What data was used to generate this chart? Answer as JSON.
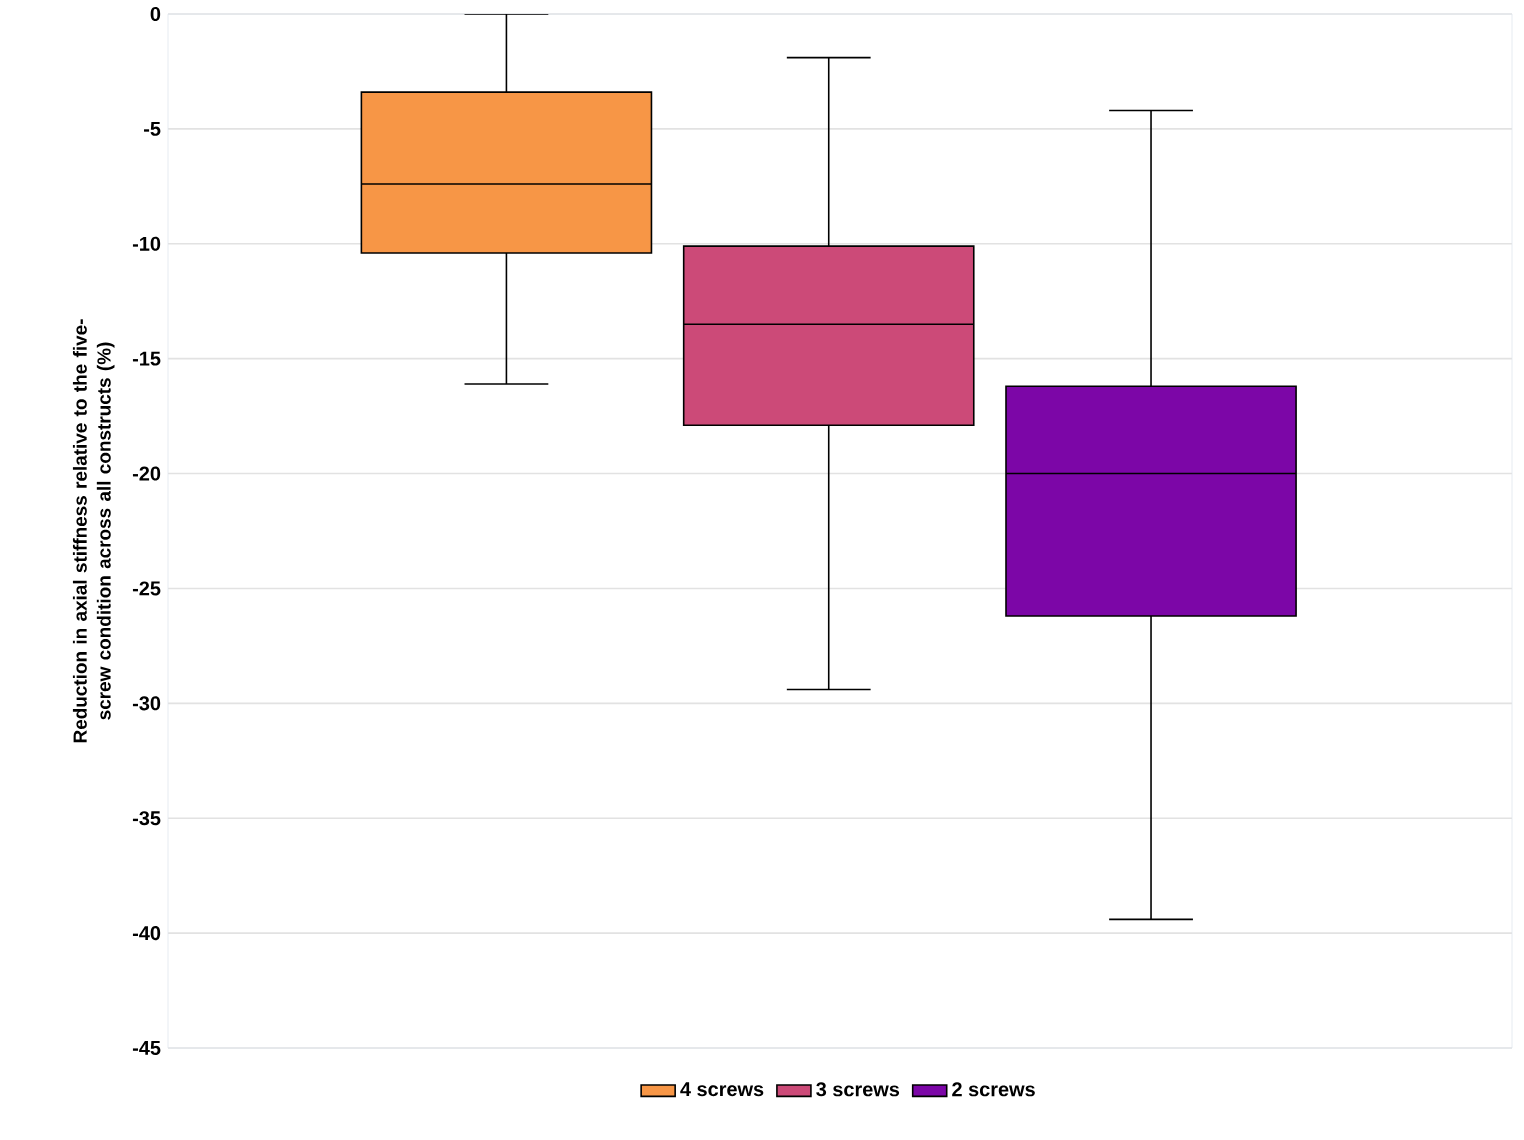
{
  "chart_data": {
    "type": "box",
    "ylabel": "Reduction in axial stiffness relative to the five-screw condition across all constructs (%)",
    "categories": [
      null
    ],
    "series": [
      {
        "name": "4 screws",
        "color": "#f79646",
        "boxes": [
          {
            "low": -16.1,
            "q1": -10.4,
            "median": -7.4,
            "q3": -3.4,
            "high": 0
          }
        ]
      },
      {
        "name": "3 screws",
        "color": "#cc4a78",
        "boxes": [
          {
            "low": -29.4,
            "q1": -17.9,
            "median": -13.5,
            "q3": -10.1,
            "high": -1.9
          }
        ]
      },
      {
        "name": "2 screws",
        "color": "#7c06a7",
        "boxes": [
          {
            "low": -39.4,
            "q1": -26.2,
            "median": -20.0,
            "q3": -16.2,
            "high": -4.2
          }
        ]
      }
    ],
    "ylim": [
      -45,
      0
    ],
    "yticks": [
      -45,
      -40,
      -35,
      -30,
      -25,
      -20,
      -15,
      -10,
      -5,
      0
    ],
    "grid": "y",
    "legend": "bottom"
  }
}
